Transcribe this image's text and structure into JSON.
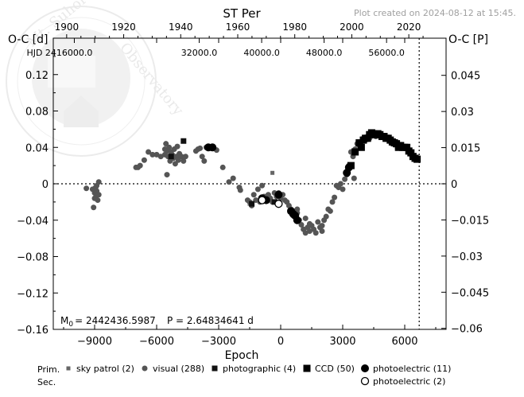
{
  "chart_data": {
    "type": "scatter",
    "title": "ST  Per",
    "credit": "Plot created on 2024-08-12 at 15:45.",
    "xlabel": "Epoch",
    "ylabel_left": "O-C [d]",
    "ylabel_right": "O-C [P]",
    "xlim": [
      -11000,
      8000
    ],
    "ylim": [
      -0.16,
      0.16
    ],
    "x_ticks": [
      -9000,
      -6000,
      -3000,
      0,
      3000,
      6000
    ],
    "x_tick_labels": [
      "−9000",
      "−6000",
      "−3000",
      "0",
      "3000",
      "6000"
    ],
    "y_ticks": [
      0.12,
      0.08,
      0.04,
      0,
      -0.04,
      -0.08,
      -0.12,
      -0.16
    ],
    "y_tick_labels": [
      "0.12",
      "0.08",
      "0.04",
      "0",
      "−0.04",
      "−0.08",
      "−0.12",
      "−0.16"
    ],
    "right_ticks": [
      0.045,
      0.03,
      0.015,
      0,
      -0.015,
      -0.03,
      -0.045,
      -0.06
    ],
    "right_tick_labels": [
      "0.045",
      "0.03",
      "0.015",
      "0",
      "−0.015",
      "−0.03",
      "−0.045",
      "−0.06"
    ],
    "period": 2.64834641,
    "top_year_ticks": [
      1900,
      1920,
      1940,
      1960,
      1980,
      2000,
      2020
    ],
    "top_year_labels": [
      "1900",
      "1920",
      "1940",
      "1960",
      "1980",
      "2000",
      "2020"
    ],
    "hjd_ticks": [
      16000,
      32000,
      40000,
      48000,
      56000
    ],
    "hjd_labels": [
      "HJD 2416000.0",
      "32000.0",
      "40000.0",
      "48000.0",
      "56000.0"
    ],
    "m0_label": "M",
    "m0_sub": "0",
    "m0_value": "=  2442436.5987",
    "period_label": "P = 2.64834641 d",
    "current_epoch_marker": 6700,
    "legend": {
      "prim_label": "Prim.",
      "sec_label": "Sec.",
      "entries": [
        {
          "name": "sky patrol (2)",
          "marker": "small-square",
          "color": "#666666"
        },
        {
          "name": "visual (288)",
          "marker": "circle",
          "color": "#555555"
        },
        {
          "name": "photographic (4)",
          "marker": "square",
          "color": "#111111"
        },
        {
          "name": "CCD (50)",
          "marker": "big-square",
          "color": "#000000"
        },
        {
          "name": "photoelectric (11)",
          "marker": "big-circle",
          "color": "#000000"
        },
        {
          "name": "photoelectric (2)",
          "marker": "open-circle",
          "color": "#000000"
        }
      ]
    },
    "series": [
      {
        "name": "sky patrol (2)",
        "marker": "small-square",
        "points": [
          [
            -1500,
            -0.022
          ],
          [
            -400,
            0.012
          ]
        ]
      },
      {
        "name": "visual (288)",
        "marker": "circle",
        "points": [
          [
            -9400,
            -0.005
          ],
          [
            -9100,
            -0.006
          ],
          [
            -9000,
            -0.01
          ],
          [
            -8950,
            -0.015
          ],
          [
            -8900,
            -0.008
          ],
          [
            -8850,
            -0.018
          ],
          [
            -8800,
            -0.012
          ],
          [
            -9050,
            -0.026
          ],
          [
            -8900,
            -0.002
          ],
          [
            -8800,
            0.002
          ],
          [
            -8950,
            -0.004
          ],
          [
            -9000,
            -0.016
          ],
          [
            -7000,
            0.018
          ],
          [
            -6800,
            0.02
          ],
          [
            -6600,
            0.026
          ],
          [
            -6400,
            0.035
          ],
          [
            -6200,
            0.032
          ],
          [
            -6000,
            0.032
          ],
          [
            -5800,
            0.03
          ],
          [
            -5600,
            0.038
          ],
          [
            -5550,
            0.044
          ],
          [
            -5500,
            0.036
          ],
          [
            -5450,
            0.03
          ],
          [
            -5400,
            0.04
          ],
          [
            -5350,
            0.025
          ],
          [
            -5300,
            0.035
          ],
          [
            -5250,
            0.032
          ],
          [
            -5200,
            0.028
          ],
          [
            -5150,
            0.038
          ],
          [
            -5100,
            0.022
          ],
          [
            -5050,
            0.03
          ],
          [
            -5000,
            0.041
          ],
          [
            -4950,
            0.026
          ],
          [
            -4900,
            0.033
          ],
          [
            -4800,
            0.03
          ],
          [
            -4700,
            0.025
          ],
          [
            -4600,
            0.03
          ],
          [
            -5500,
            0.01
          ],
          [
            -6900,
            0.018
          ],
          [
            -5600,
            0.032
          ],
          [
            -4100,
            0.036
          ],
          [
            -4000,
            0.038
          ],
          [
            -3900,
            0.039
          ],
          [
            -3800,
            0.03
          ],
          [
            -3700,
            0.025
          ],
          [
            -3600,
            0.04
          ],
          [
            -3400,
            0.039
          ],
          [
            -3100,
            0.037
          ],
          [
            -2800,
            0.018
          ],
          [
            -2500,
            0.002
          ],
          [
            -2300,
            0.006
          ],
          [
            -2000,
            -0.004
          ],
          [
            -1950,
            -0.007
          ],
          [
            -1600,
            -0.018
          ],
          [
            -1500,
            -0.02
          ],
          [
            -1400,
            -0.024
          ],
          [
            -1300,
            -0.012
          ],
          [
            -1200,
            -0.018
          ],
          [
            -1100,
            -0.006
          ],
          [
            -1000,
            -0.02
          ],
          [
            -900,
            -0.002
          ],
          [
            -800,
            -0.014
          ],
          [
            -700,
            -0.018
          ],
          [
            -600,
            -0.012
          ],
          [
            -500,
            -0.016
          ],
          [
            -400,
            -0.02
          ],
          [
            -300,
            -0.01
          ],
          [
            -200,
            -0.014
          ],
          [
            -100,
            -0.01
          ],
          [
            0,
            -0.016
          ],
          [
            100,
            -0.012
          ],
          [
            200,
            -0.018
          ],
          [
            300,
            -0.02
          ],
          [
            400,
            -0.024
          ],
          [
            500,
            -0.028
          ],
          [
            600,
            -0.035
          ],
          [
            700,
            -0.03
          ],
          [
            800,
            -0.032
          ],
          [
            900,
            -0.04
          ],
          [
            1000,
            -0.045
          ],
          [
            1100,
            -0.05
          ],
          [
            1200,
            -0.054
          ],
          [
            1300,
            -0.048
          ],
          [
            1400,
            -0.052
          ],
          [
            1500,
            -0.046
          ],
          [
            1600,
            -0.05
          ],
          [
            1700,
            -0.054
          ],
          [
            1800,
            -0.042
          ],
          [
            1900,
            -0.048
          ],
          [
            2000,
            -0.052
          ],
          [
            2100,
            -0.04
          ],
          [
            2200,
            -0.036
          ],
          [
            2300,
            -0.028
          ],
          [
            2400,
            -0.03
          ],
          [
            2500,
            -0.02
          ],
          [
            2600,
            -0.015
          ],
          [
            2700,
            -0.002
          ],
          [
            2800,
            -0.004
          ],
          [
            2900,
            0.0
          ],
          [
            3000,
            -0.006
          ],
          [
            3100,
            0.005
          ],
          [
            3200,
            0.01
          ],
          [
            3300,
            0.02
          ],
          [
            3400,
            0.035
          ],
          [
            3500,
            0.03
          ],
          [
            3600,
            0.038
          ],
          [
            3700,
            0.044
          ],
          [
            3800,
            0.042
          ],
          [
            3900,
            0.046
          ],
          [
            4000,
            0.05
          ],
          [
            4100,
            0.048
          ],
          [
            4200,
            0.052
          ],
          [
            4300,
            0.05
          ],
          [
            4400,
            0.054
          ],
          [
            4600,
            0.052
          ],
          [
            3550,
            0.006
          ],
          [
            1400,
            -0.044
          ],
          [
            1200,
            -0.038
          ],
          [
            800,
            -0.028
          ],
          [
            2000,
            -0.046
          ]
        ]
      },
      {
        "name": "photographic (4)",
        "marker": "square",
        "points": [
          [
            -5300,
            0.03
          ],
          [
            -4700,
            0.047
          ],
          [
            -1400,
            -0.022
          ],
          [
            -300,
            -0.02
          ]
        ]
      },
      {
        "name": "CCD (50)",
        "marker": "big-square",
        "points": [
          [
            3400,
            0.02
          ],
          [
            3600,
            0.035
          ],
          [
            3800,
            0.045
          ],
          [
            4000,
            0.048
          ],
          [
            4200,
            0.05
          ],
          [
            4300,
            0.054
          ],
          [
            4400,
            0.056
          ],
          [
            4500,
            0.055
          ],
          [
            4600,
            0.054
          ],
          [
            4700,
            0.055
          ],
          [
            4800,
            0.054
          ],
          [
            4900,
            0.052
          ],
          [
            5000,
            0.052
          ],
          [
            5100,
            0.05
          ],
          [
            5200,
            0.05
          ],
          [
            5300,
            0.048
          ],
          [
            5400,
            0.046
          ],
          [
            5500,
            0.045
          ],
          [
            5600,
            0.044
          ],
          [
            5700,
            0.042
          ],
          [
            5800,
            0.042
          ],
          [
            5900,
            0.04
          ],
          [
            6000,
            0.04
          ],
          [
            6100,
            0.04
          ],
          [
            6200,
            0.036
          ],
          [
            6300,
            0.034
          ],
          [
            6400,
            0.03
          ],
          [
            6500,
            0.028
          ],
          [
            6600,
            0.027
          ],
          [
            3900,
            0.04
          ],
          [
            4100,
            0.05
          ],
          [
            5700,
            0.04
          ]
        ]
      },
      {
        "name": "photoelectric (11)",
        "marker": "big-circle",
        "points": [
          [
            -3500,
            0.04
          ],
          [
            -3300,
            0.04
          ],
          [
            -900,
            -0.016
          ],
          [
            -700,
            -0.018
          ],
          [
            -100,
            -0.012
          ],
          [
            500,
            -0.03
          ],
          [
            600,
            -0.033
          ],
          [
            700,
            -0.035
          ],
          [
            800,
            -0.04
          ],
          [
            3200,
            0.012
          ],
          [
            3300,
            0.018
          ]
        ]
      },
      {
        "name": "photoelectric (2)",
        "marker": "open-circle",
        "points": [
          [
            -900,
            -0.018
          ],
          [
            -100,
            -0.022
          ]
        ]
      }
    ]
  }
}
